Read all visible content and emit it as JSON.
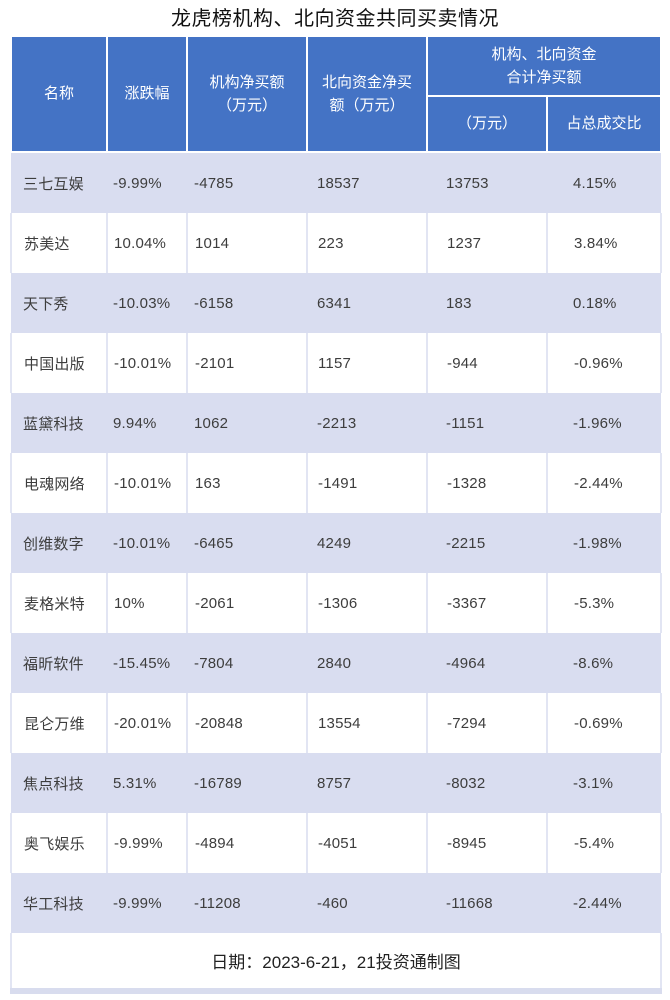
{
  "title": "龙虎榜机构、北向资金共同买卖情况",
  "table_header": {
    "name": "名称",
    "change": "涨跌幅",
    "inst_net": "机构净买额\n（万元）",
    "north_net": "北向资金净买\n额（万元）",
    "group": "机构、北向资金\n合计净买额",
    "group_amount": "（万元）",
    "group_ratio": "占总成交比"
  },
  "footer": {
    "text": "日期：2023-6-21，21投资通制图"
  },
  "colors": {
    "header_bg": "#4473c5",
    "row_alt_bg": "#d9ddf0",
    "row_bg": "#ffffff",
    "grid_line": "#e2e5f3",
    "edge_line": "#d8dcee",
    "header_text": "#ffffff",
    "body_text": "#3d3d3d"
  },
  "chart_data": {
    "type": "table",
    "title": "龙虎榜机构、北向资金共同买卖情况",
    "columns": [
      "名称",
      "涨跌幅",
      "机构净买额（万元）",
      "北向资金净买额（万元）",
      "机构、北向资金合计净买额（万元）",
      "机构、北向资金合计净买额占总成交比"
    ],
    "rows": [
      [
        "三七互娱",
        "-9.99%",
        "-4785",
        "18537",
        "13753",
        "4.15%"
      ],
      [
        "苏美达",
        "10.04%",
        "1014",
        "223",
        "1237",
        "3.84%"
      ],
      [
        "天下秀",
        "-10.03%",
        "-6158",
        "6341",
        "183",
        "0.18%"
      ],
      [
        "中国出版",
        "-10.01%",
        "-2101",
        "1157",
        "-944",
        "-0.96%"
      ],
      [
        "蓝黛科技",
        "9.94%",
        "1062",
        "-2213",
        "-1151",
        "-1.96%"
      ],
      [
        "电魂网络",
        "-10.01%",
        "163",
        "-1491",
        "-1328",
        "-2.44%"
      ],
      [
        "创维数字",
        "-10.01%",
        "-6465",
        "4249",
        "-2215",
        "-1.98%"
      ],
      [
        "麦格米特",
        "10%",
        "-2061",
        "-1306",
        "-3367",
        "-5.3%"
      ],
      [
        "福昕软件",
        "-15.45%",
        "-7804",
        "2840",
        "-4964",
        "-8.6%"
      ],
      [
        "昆仑万维",
        "-20.01%",
        "-20848",
        "13554",
        "-7294",
        "-0.69%"
      ],
      [
        "焦点科技",
        "5.31%",
        "-16789",
        "8757",
        "-8032",
        "-3.1%"
      ],
      [
        "奥飞娱乐",
        "-9.99%",
        "-4894",
        "-4051",
        "-8945",
        "-5.4%"
      ],
      [
        "华工科技",
        "-9.99%",
        "-11208",
        "-460",
        "-11668",
        "-2.44%"
      ]
    ],
    "date_note": "日期：2023-6-21，21投资通制图"
  }
}
